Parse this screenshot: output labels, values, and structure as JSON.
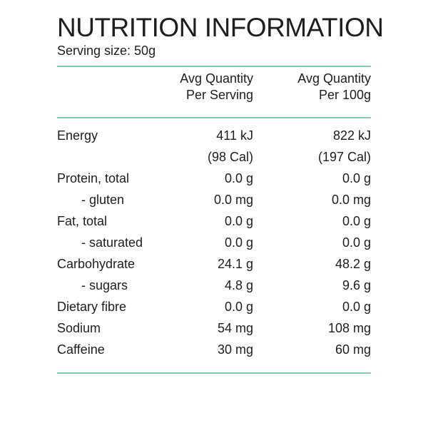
{
  "title": "NUTRITION INFORMATION",
  "serving_size": "Serving size: 50g",
  "colors": {
    "rule": "#7fcbb8",
    "text": "#1e1e1e"
  },
  "headers": {
    "per_serving_line1": "Avg Quantity",
    "per_serving_line2": "Per Serving",
    "per_100g_line1": "Avg Quantity",
    "per_100g_line2": "Per 100g"
  },
  "rows": [
    {
      "label": "Energy",
      "indent": false,
      "per_serving": "411 kJ",
      "per_100g": "822 kJ"
    },
    {
      "label": "",
      "indent": false,
      "per_serving": "(98 Cal)",
      "per_100g": "(197 Cal)"
    },
    {
      "label": "Protein, total",
      "indent": false,
      "per_serving": "0.0 g",
      "per_100g": "0.0 g"
    },
    {
      "label": "- gluten",
      "indent": true,
      "per_serving": "0.0 mg",
      "per_100g": "0.0 mg"
    },
    {
      "label": "Fat, total",
      "indent": false,
      "per_serving": "0.0 g",
      "per_100g": "0.0 g"
    },
    {
      "label": "- saturated",
      "indent": true,
      "per_serving": "0.0 g",
      "per_100g": "0.0 g"
    },
    {
      "label": "Carbohydrate",
      "indent": false,
      "per_serving": "24.1 g",
      "per_100g": "48.2 g"
    },
    {
      "label": "- sugars",
      "indent": true,
      "per_serving": "4.8 g",
      "per_100g": "9.6 g"
    },
    {
      "label": "Dietary fibre",
      "indent": false,
      "per_serving": "0.0 g",
      "per_100g": "0.0 g"
    },
    {
      "label": "Sodium",
      "indent": false,
      "per_serving": "54 mg",
      "per_100g": "108 mg"
    },
    {
      "label": "Caffeine",
      "indent": false,
      "per_serving": "30 mg",
      "per_100g": "60 mg"
    }
  ]
}
